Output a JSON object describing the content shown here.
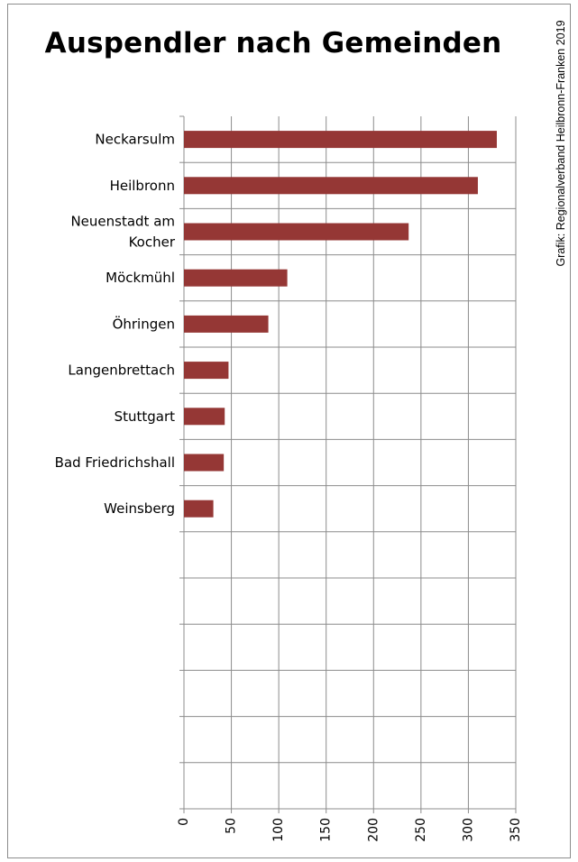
{
  "chart_data": {
    "type": "bar",
    "orientation": "horizontal",
    "title": "Auspendler nach Gemeinden",
    "credit": "Grafik: Regionalverband Heilbronn-Franken 2019",
    "categories": [
      [
        "Neckarsulm"
      ],
      [
        "Heilbronn"
      ],
      [
        "Neuenstadt am",
        "Kocher"
      ],
      [
        "Möckmühl"
      ],
      [
        "Öhringen"
      ],
      [
        "Langenbrettach"
      ],
      [
        "Stuttgart"
      ],
      [
        "Bad Friedrichshall"
      ],
      [
        "Weinsberg"
      ]
    ],
    "values": [
      330,
      310,
      237,
      109,
      89,
      47,
      43,
      42,
      31
    ],
    "empty_slots": 6,
    "xlim": [
      0,
      350
    ],
    "xticks": [
      0,
      50,
      100,
      150,
      200,
      250,
      300,
      350
    ],
    "grid": true,
    "bar_color": "#953735",
    "grid_color": "#8c8c8c"
  }
}
